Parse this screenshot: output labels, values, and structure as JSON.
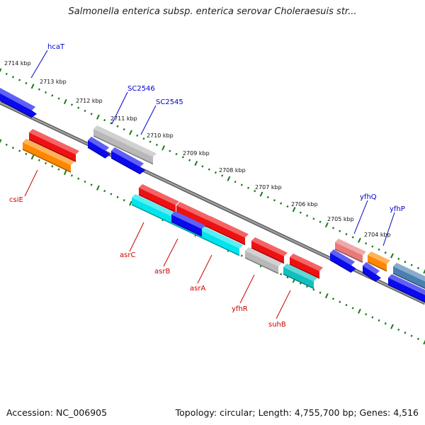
{
  "header": {
    "title": "Salmonella enterica subsp. enterica serovar Choleraesuis str..."
  },
  "footer": {
    "accession": "Accession: NC_006905",
    "summary": "Topology: circular; Length: 4,755,700 bp; Genes: 4,516"
  },
  "colors": {
    "backbone": "#888888",
    "tick": "#1a7a1a",
    "label_forward": "#0000cc",
    "label_reverse": "#cc0000",
    "red": "#ee1111",
    "orange": "#ff8800",
    "blue": "#0a0aee",
    "gray": "#b8b8b8",
    "cyan": "#00e4ee",
    "teal": "#10c0c0",
    "pink": "#e87a7a",
    "steel": "#4a7fb0"
  },
  "map": {
    "kbp_labels": [
      "2714 kbp",
      "2713 kbp",
      "2712 kbp",
      "2711 kbp",
      "2710 kbp",
      "2709 kbp",
      "2708 kbp",
      "2707 kbp",
      "2706 kbp",
      "2705 kbp",
      "2704 kbp"
    ],
    "forward_gene_labels": [
      "hcaT",
      "SC2546",
      "SC2545",
      "yfhQ",
      "yfhP"
    ],
    "reverse_gene_labels": [
      "csiE",
      "asrC",
      "asrB",
      "asrA",
      "yfhR",
      "suhB"
    ]
  }
}
